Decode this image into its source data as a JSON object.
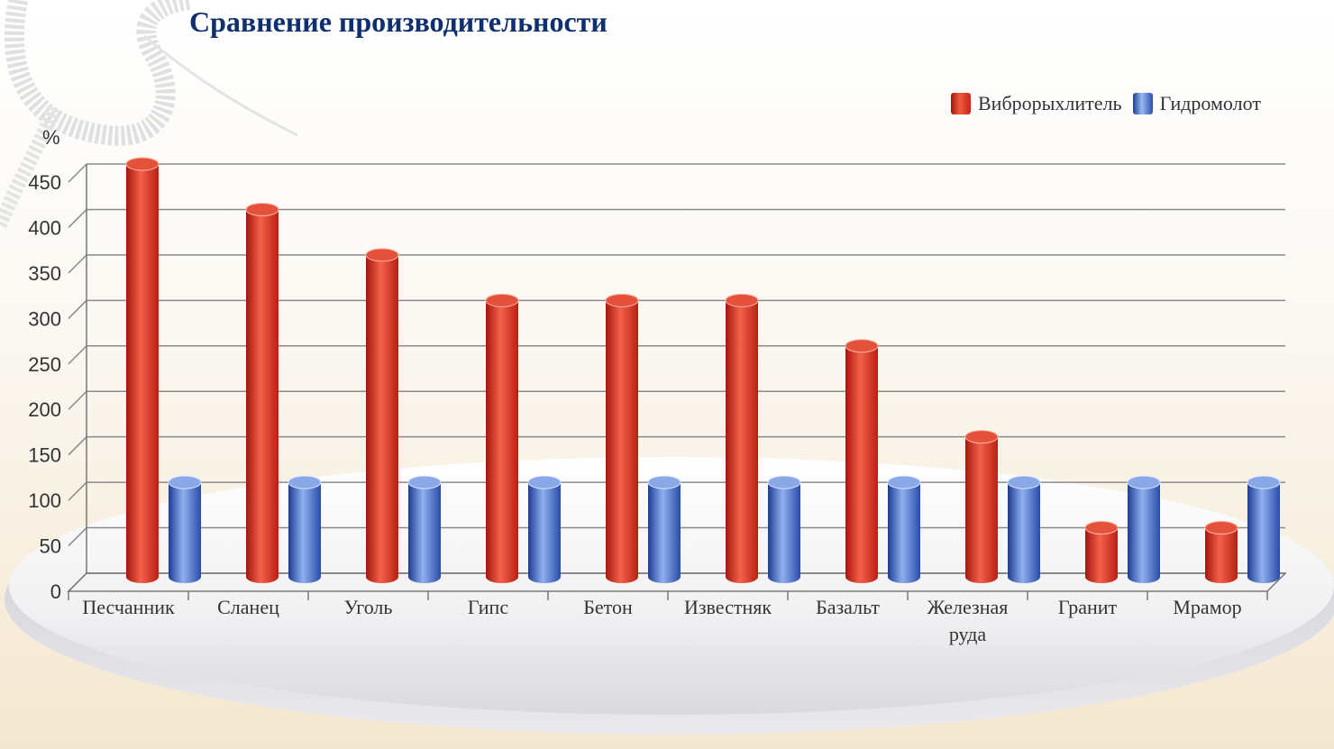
{
  "chart_data": {
    "type": "bar",
    "title": "Сравнение производительности",
    "ylabel": "%",
    "xlabel": "",
    "ylim": [
      0,
      450
    ],
    "yticks": [
      0,
      50,
      100,
      150,
      200,
      250,
      300,
      350,
      400,
      450
    ],
    "categories": [
      [
        "Песчанник"
      ],
      [
        "Сланец"
      ],
      [
        "Уголь"
      ],
      [
        "Гипс"
      ],
      [
        "Бетон"
      ],
      [
        "Известняк"
      ],
      [
        "Базальт"
      ],
      [
        "Железная",
        "руда"
      ],
      [
        "Гранит"
      ],
      [
        "Мрамор"
      ]
    ],
    "series": [
      {
        "name": "Виброрыхлитель",
        "color": "#d93523",
        "values": [
          450,
          400,
          350,
          300,
          300,
          300,
          250,
          150,
          50,
          50
        ]
      },
      {
        "name": "Гидромолот",
        "color": "#3556b5",
        "values": [
          100,
          100,
          100,
          100,
          100,
          100,
          100,
          100,
          100,
          100
        ]
      }
    ],
    "grid": true,
    "legend_position": "top-right"
  }
}
